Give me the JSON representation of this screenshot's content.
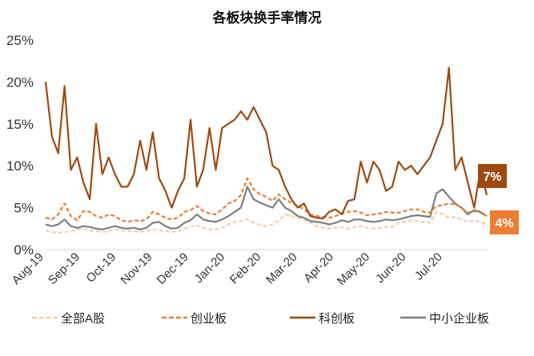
{
  "chart_data": {
    "type": "line",
    "title": "各板块换手率情况",
    "xlabel": "",
    "ylabel": "",
    "ylim": [
      0,
      25
    ],
    "y_ticks": [
      "0%",
      "5%",
      "10%",
      "15%",
      "20%",
      "25%"
    ],
    "x_tick_labels": [
      "Aug-19",
      "Sep-19",
      "Oct-19",
      "Nov-19",
      "Dec-19",
      "Jan-20",
      "Feb-20",
      "Mar-20",
      "Apr-20",
      "May-20",
      "Jun-20",
      "Jul-20"
    ],
    "grid": false,
    "legend_position": "bottom",
    "colors": {
      "全部A股": "#f8cbad",
      "创业板": "#ed7d31",
      "科创板": "#9c4a10",
      "中小企业板": "#7f7f7f"
    },
    "callouts": [
      {
        "text": "7%",
        "color": "#9c4a10",
        "series": "科创板"
      },
      {
        "text": "4%",
        "color": "#ed7d31",
        "series": "创业板"
      }
    ],
    "series": [
      {
        "name": "全部A股",
        "style": "dashed",
        "color": "#f8cbad",
        "values": [
          2.3,
          2.1,
          2.0,
          2.1,
          2.2,
          2.4,
          2.5,
          2.3,
          2.2,
          2.1,
          2.2,
          2.4,
          2.3,
          2.2,
          2.2,
          2.1,
          2.2,
          2.4,
          2.3,
          2.2,
          2.1,
          2.2,
          2.5,
          2.7,
          2.9,
          2.6,
          2.4,
          2.4,
          2.6,
          3.0,
          3.3,
          3.4,
          3.6,
          3.2,
          3.0,
          2.8,
          3.0,
          3.5,
          4.2,
          4.0,
          3.8,
          3.6,
          3.2,
          2.8,
          2.6,
          2.5,
          2.6,
          2.7,
          2.5,
          2.7,
          2.8,
          2.6,
          2.5,
          2.6,
          2.7,
          2.7,
          3.2,
          3.3,
          3.5,
          3.4,
          3.3,
          3.2,
          4.5,
          4.2,
          3.8,
          3.9,
          3.6,
          3.3,
          3.5,
          3.3,
          3.0
        ]
      },
      {
        "name": "创业板",
        "style": "dashed",
        "color": "#ed7d31",
        "values": [
          3.8,
          3.6,
          4.2,
          5.5,
          4.0,
          3.5,
          4.6,
          4.5,
          4.0,
          3.8,
          4.2,
          4.0,
          3.5,
          3.3,
          3.5,
          3.4,
          3.6,
          4.5,
          4.2,
          3.8,
          3.6,
          3.8,
          4.5,
          4.7,
          5.2,
          4.6,
          4.3,
          4.2,
          4.8,
          5.5,
          5.8,
          6.5,
          8.5,
          7.2,
          6.6,
          6.3,
          5.8,
          6.6,
          6.0,
          5.6,
          5.2,
          4.8,
          4.2,
          4.0,
          3.9,
          3.8,
          4.0,
          4.3,
          4.5,
          4.6,
          4.4,
          4.1,
          4.2,
          4.3,
          4.5,
          4.4,
          4.4,
          4.6,
          4.8,
          4.8,
          4.5,
          4.4,
          5.2,
          5.3,
          5.5,
          5.4,
          5.0,
          4.4,
          4.6,
          4.4,
          4.0
        ]
      },
      {
        "name": "科创板",
        "style": "solid",
        "color": "#9c4a10",
        "values": [
          20.0,
          13.5,
          11.5,
          19.5,
          9.5,
          11.0,
          8.0,
          6.0,
          15.0,
          9.0,
          11.0,
          9.0,
          7.5,
          7.5,
          9.0,
          13.0,
          9.5,
          14.0,
          8.5,
          7.0,
          5.0,
          7.0,
          8.5,
          15.5,
          7.5,
          9.5,
          14.5,
          9.5,
          14.5,
          15.0,
          15.5,
          16.5,
          15.5,
          17.0,
          15.5,
          14.0,
          10.0,
          9.5,
          7.5,
          6.0,
          5.0,
          5.5,
          4.0,
          3.8,
          3.7,
          4.5,
          4.8,
          4.2,
          5.8,
          6.0,
          10.5,
          8.0,
          10.5,
          9.5,
          7.0,
          7.5,
          10.5,
          9.5,
          10.0,
          9.0,
          10.0,
          11.0,
          13.0,
          15.0,
          21.7,
          9.5,
          11.0,
          8.0,
          5.0,
          9.5,
          6.5
        ]
      },
      {
        "name": "中小企业板",
        "style": "solid",
        "color": "#7f7f7f",
        "values": [
          3.0,
          2.8,
          3.0,
          3.6,
          2.8,
          2.6,
          2.8,
          2.7,
          2.5,
          2.4,
          2.6,
          2.8,
          2.6,
          2.5,
          2.6,
          2.4,
          2.6,
          3.2,
          3.3,
          2.8,
          2.5,
          2.6,
          3.2,
          3.5,
          4.2,
          3.6,
          3.4,
          3.3,
          3.6,
          4.0,
          4.5,
          5.0,
          7.5,
          6.0,
          5.6,
          5.3,
          5.0,
          6.0,
          5.0,
          4.6,
          4.0,
          3.8,
          3.4,
          3.3,
          3.2,
          3.0,
          3.2,
          3.5,
          3.3,
          3.6,
          3.6,
          3.4,
          3.3,
          3.4,
          3.6,
          3.5,
          3.6,
          3.8,
          4.0,
          4.1,
          4.0,
          3.9,
          6.7,
          7.2,
          6.3,
          5.5,
          5.0,
          4.2,
          4.7,
          4.5,
          4.0
        ]
      }
    ]
  }
}
